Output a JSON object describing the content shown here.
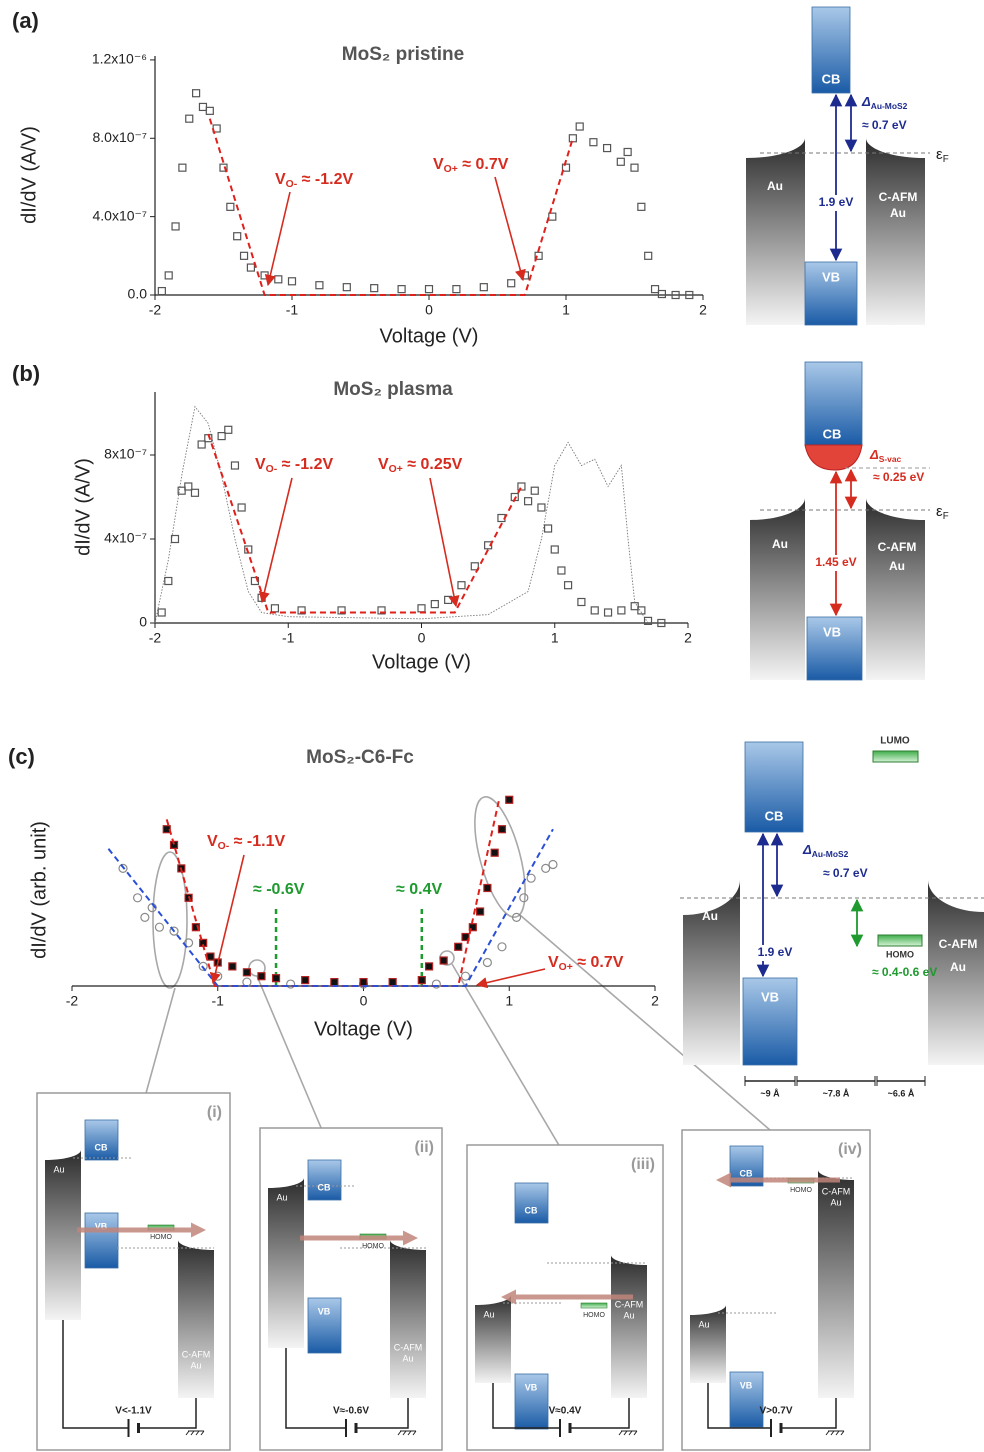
{
  "panel_labels": [
    "(a)",
    "(b)",
    "(c)"
  ],
  "chart_data": [
    {
      "type": "scatter",
      "title": "MoS₂ pristine",
      "xlabel": "Voltage (V)",
      "ylabel": "dI/dV (A/V)",
      "xlim": [
        -2,
        2
      ],
      "ylim": [
        0,
        1.22e-06
      ],
      "xticks": [
        -2,
        -1,
        0,
        1,
        2
      ],
      "yticks": [
        {
          "value": 0,
          "label": "0.0"
        },
        {
          "value": 4e-07,
          "label": "4.0x10⁻⁷"
        },
        {
          "value": 8e-07,
          "label": "8.0x10⁻⁷"
        },
        {
          "value": 1.2e-06,
          "label": "1.2x10⁻⁶"
        }
      ],
      "series": [
        {
          "marker": "square",
          "fill": "none",
          "color": "#555555",
          "x": [
            -1.95,
            -1.9,
            -1.85,
            -1.8,
            -1.75,
            -1.7,
            -1.65,
            -1.6,
            -1.55,
            -1.5,
            -1.45,
            -1.4,
            -1.35,
            -1.3,
            -1.2,
            -1.1,
            -1.0,
            -0.8,
            -0.6,
            -0.4,
            -0.2,
            0,
            0.2,
            0.4,
            0.6,
            0.7,
            0.8,
            0.9,
            1.0,
            1.05,
            1.1,
            1.2,
            1.3,
            1.4,
            1.45,
            1.5,
            1.55,
            1.6,
            1.65,
            1.7,
            1.8,
            1.9
          ],
          "values": [
            2e-08,
            1e-07,
            3.5e-07,
            6.5e-07,
            9e-07,
            1.03e-06,
            9.6e-07,
            9.4e-07,
            8.5e-07,
            6.5e-07,
            4.5e-07,
            3e-07,
            2e-07,
            1.4e-07,
            1e-07,
            8e-08,
            7e-08,
            5e-08,
            4e-08,
            3.5e-08,
            3e-08,
            3e-08,
            3e-08,
            4e-08,
            6e-08,
            1e-07,
            2e-07,
            4e-07,
            6.5e-07,
            8e-07,
            8.6e-07,
            7.8e-07,
            7.5e-07,
            6.8e-07,
            7.3e-07,
            6.5e-07,
            4.5e-07,
            2e-07,
            3e-08,
            5e-09,
            0,
            0
          ]
        },
        {
          "line": "dashed",
          "color": "#e0201b",
          "x": [
            -1.6,
            -1.2,
            0.7,
            1.05
          ],
          "values": [
            9e-07,
            0,
            0,
            8e-07
          ]
        }
      ],
      "annotations": [
        {
          "text": "V",
          "sub": "O-",
          "rest": " ≈ -1.2V",
          "color": "#d62b1f"
        },
        {
          "text": "V",
          "sub": "O+",
          "rest": " ≈ 0.7V",
          "color": "#d62b1f"
        }
      ]
    },
    {
      "type": "scatter",
      "title": "MoS₂ plasma",
      "xlabel": "Voltage (V)",
      "ylabel": "dI/dV (A/V)",
      "xlim": [
        -2,
        2
      ],
      "ylim": [
        0,
        1.1e-06
      ],
      "xticks": [
        -2,
        -1,
        0,
        1,
        2
      ],
      "yticks": [
        0,
        {
          "value": 4e-07,
          "label": "4x10⁻⁷"
        },
        {
          "value": 8e-07,
          "label": "8x10⁻⁷"
        }
      ],
      "series": [
        {
          "line": "dotted",
          "color": "#777777",
          "x": [
            -2,
            -1.9,
            -1.8,
            -1.7,
            -1.6,
            -1.5,
            -1.4,
            -1.3,
            -1.2,
            -1.0,
            0,
            0.5,
            0.8,
            0.9,
            1.0,
            1.1,
            1.2,
            1.3,
            1.4,
            1.5,
            1.55,
            1.6,
            1.7
          ],
          "values": [
            0,
            3e-07,
            7e-07,
            1.03e-06,
            9.5e-07,
            7e-07,
            4e-07,
            1.5e-07,
            5e-08,
            3e-08,
            2e-08,
            4e-08,
            1.5e-07,
            4e-07,
            7.5e-07,
            8.6e-07,
            7.5e-07,
            7.8e-07,
            6.5e-07,
            7.5e-07,
            4e-07,
            1e-07,
            0
          ]
        },
        {
          "marker": "square",
          "fill": "none",
          "color": "#555555",
          "x": [
            -1.95,
            -1.9,
            -1.85,
            -1.8,
            -1.75,
            -1.7,
            -1.65,
            -1.6,
            -1.5,
            -1.45,
            -1.4,
            -1.35,
            -1.3,
            -1.25,
            -1.2,
            -1.1,
            -0.9,
            -0.6,
            -0.3,
            0,
            0.1,
            0.2,
            0.3,
            0.4,
            0.5,
            0.6,
            0.7,
            0.75,
            0.8,
            0.85,
            0.9,
            0.95,
            1.0,
            1.05,
            1.1,
            1.2,
            1.3,
            1.4,
            1.5,
            1.6,
            1.65,
            1.7,
            1.8
          ],
          "values": [
            5e-08,
            2e-07,
            4e-07,
            6.3e-07,
            6.5e-07,
            6.2e-07,
            8.5e-07,
            8.8e-07,
            8.9e-07,
            9.2e-07,
            7.5e-07,
            5.5e-07,
            3.5e-07,
            2e-07,
            1.2e-07,
            7e-08,
            6e-08,
            6e-08,
            6e-08,
            7e-08,
            9e-08,
            1.1e-07,
            1.8e-07,
            2.7e-07,
            3.7e-07,
            5e-07,
            6e-07,
            6.5e-07,
            5.8e-07,
            6.3e-07,
            5.5e-07,
            4.5e-07,
            3.5e-07,
            2.5e-07,
            1.8e-07,
            1e-07,
            6e-08,
            5e-08,
            6e-08,
            8e-08,
            6e-08,
            1e-08,
            0
          ]
        },
        {
          "line": "dashed",
          "color": "#e0201b",
          "x": [
            -1.6,
            -1.15,
            0.25,
            0.75
          ],
          "values": [
            9e-07,
            5e-08,
            5e-08,
            6.5e-07
          ]
        }
      ],
      "annotations": [
        {
          "text": "V",
          "sub": "O-",
          "rest": " ≈ -1.2V",
          "color": "#d62b1f"
        },
        {
          "text": "V",
          "sub": "O+",
          "rest": " ≈ 0.25V",
          "color": "#d62b1f"
        }
      ]
    },
    {
      "type": "scatter",
      "title": "MoS₂-C6-Fc",
      "xlabel": "Voltage (V)",
      "ylabel": "dI/dV (arb. unit)",
      "xlim": [
        -2,
        2
      ],
      "ylim": [
        0,
        1
      ],
      "xticks": [
        -2,
        -1,
        0,
        1,
        2
      ],
      "y_axis_line": false,
      "series": [
        {
          "marker": "circle",
          "fill": "none",
          "color": "#8a8a8a",
          "x": [
            -1.65,
            -1.55,
            -1.5,
            -1.45,
            -1.4,
            -1.3,
            -1.2,
            -1.1,
            -1.0,
            -0.8,
            -0.5,
            0,
            0.5,
            0.7,
            0.85,
            0.95,
            1.05,
            1.1,
            1.15,
            1.25,
            1.3
          ],
          "values": [
            0.6,
            0.45,
            0.35,
            0.4,
            0.3,
            0.28,
            0.22,
            0.1,
            0.05,
            0.02,
            0.01,
            0.01,
            0.01,
            0.05,
            0.12,
            0.2,
            0.35,
            0.45,
            0.55,
            0.6,
            0.62
          ]
        },
        {
          "marker": "square",
          "fill": "#111111",
          "color": "#b22222",
          "x": [
            -1.35,
            -1.3,
            -1.25,
            -1.2,
            -1.15,
            -1.1,
            -1.05,
            -1.0,
            -0.9,
            -0.8,
            -0.7,
            -0.6,
            -0.4,
            -0.2,
            0,
            0.2,
            0.4,
            0.45,
            0.55,
            0.65,
            0.7,
            0.75,
            0.8,
            0.85,
            0.9,
            0.95,
            1.0
          ],
          "values": [
            0.8,
            0.72,
            0.6,
            0.45,
            0.3,
            0.22,
            0.15,
            0.12,
            0.1,
            0.07,
            0.05,
            0.04,
            0.03,
            0.02,
            0.02,
            0.02,
            0.03,
            0.1,
            0.13,
            0.2,
            0.25,
            0.3,
            0.38,
            0.5,
            0.68,
            0.8,
            0.95
          ]
        },
        {
          "line": "dashed",
          "color": "#e0201b",
          "x": [
            -1.35,
            -1.02,
            0.65,
            0.93
          ],
          "values": [
            0.85,
            0,
            0,
            0.95
          ]
        },
        {
          "line": "dashed",
          "color": "#2a4fd6",
          "x": [
            -1.75,
            -1.0,
            0.7,
            1.3
          ],
          "values": [
            0.7,
            0,
            0,
            0.8
          ]
        }
      ],
      "vlines": [
        -0.6,
        0.4
      ],
      "vline_color": "#1e9a2e",
      "annotations": [
        {
          "text": "V",
          "sub": "O-",
          "rest": " ≈ -1.1V",
          "color": "#d62b1f"
        },
        {
          "text": "≈ -0.6V",
          "color": "#1e9a2e"
        },
        {
          "text": "≈ 0.4V",
          "color": "#1e9a2e"
        },
        {
          "text": "V",
          "sub": "O+",
          "rest": " ≈ 0.7V",
          "color": "#d62b1f"
        }
      ]
    }
  ],
  "diagrams": [
    {
      "cb": "CB",
      "vb": "VB",
      "left_metal": "Au",
      "right_metal": [
        "C-AFM",
        "Au"
      ],
      "fermi": {
        "symbol": "ε",
        "sub": "F"
      },
      "gap": "1.9 eV",
      "offset": {
        "symbol": "Δ",
        "sub": "Au-MoS2",
        "value": "≈ 0.7 eV"
      }
    },
    {
      "cb": "CB",
      "vb": "VB",
      "left_metal": "Au",
      "right_metal": [
        "C-AFM",
        "Au"
      ],
      "fermi": {
        "symbol": "ε",
        "sub": "F"
      },
      "gap": "1.45 eV",
      "offset": {
        "symbol": "Δ",
        "sub": "S-vac",
        "value": "≈ 0.25 eV"
      }
    },
    {
      "lumo": "LUMO",
      "cb": "CB",
      "vb": "VB",
      "left_metal": "Au",
      "right_metal": [
        "C-AFM",
        "Au"
      ],
      "gap": "1.9 eV",
      "offset": {
        "symbol": "Δ",
        "sub": "Au-MoS2",
        "value": "≈ 0.7 eV"
      },
      "homo": "HOMO",
      "homo_offset": "≈ 0.4-0.6 eV",
      "distances": [
        "~9 Å",
        "~7.8 Å",
        "~6.6 Å"
      ]
    }
  ],
  "subpanels": [
    {
      "label": "(i)",
      "cb": "CB",
      "vb": "VB",
      "left_metal": "Au",
      "homo": "HOMO",
      "right_metal": [
        "C-AFM",
        "Au"
      ],
      "bias": "V<-1.1V"
    },
    {
      "label": "(ii)",
      "cb": "CB",
      "vb": "VB",
      "left_metal": "Au",
      "homo": "HOMO",
      "right_metal": [
        "C-AFM",
        "Au"
      ],
      "bias": "V≈-0.6V"
    },
    {
      "label": "(iii)",
      "cb": "CB",
      "vb": "VB",
      "left_metal": "Au",
      "homo": "HOMO",
      "right_metal": [
        "C-AFM",
        "Au"
      ],
      "bias": "V≈0.4V"
    },
    {
      "label": "(iv)",
      "cb": "CB",
      "vb": "VB",
      "left_metal": "Au",
      "homo": "HOMO",
      "right_metal": [
        "C-AFM",
        "Au"
      ],
      "bias": "V>0.7V"
    }
  ]
}
